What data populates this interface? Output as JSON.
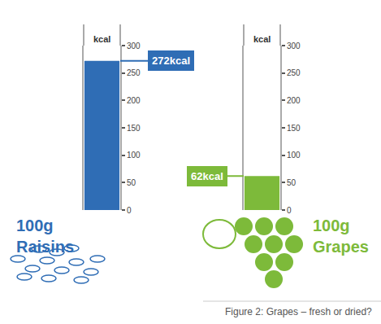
{
  "chart_data": [
    {
      "type": "bar",
      "ylabel": "kcal",
      "categories": [
        "100g Raisins"
      ],
      "values": [
        272
      ],
      "value_labels": [
        "272kcal"
      ],
      "data_labels": true,
      "color": "#2f6db5",
      "ylim": [
        0,
        300
      ],
      "yticks": [
        0,
        50,
        100,
        150,
        200,
        250,
        300
      ],
      "grid": false
    },
    {
      "type": "bar",
      "ylabel": "kcal",
      "categories": [
        "100g Grapes"
      ],
      "values": [
        62
      ],
      "value_labels": [
        "62kcal"
      ],
      "data_labels": true,
      "color": "#7dba3a",
      "ylim": [
        0,
        300
      ],
      "yticks": [
        0,
        50,
        100,
        150,
        200,
        250,
        300
      ],
      "grid": false
    }
  ],
  "caption": "Figure 2: Grapes – fresh or dried?"
}
